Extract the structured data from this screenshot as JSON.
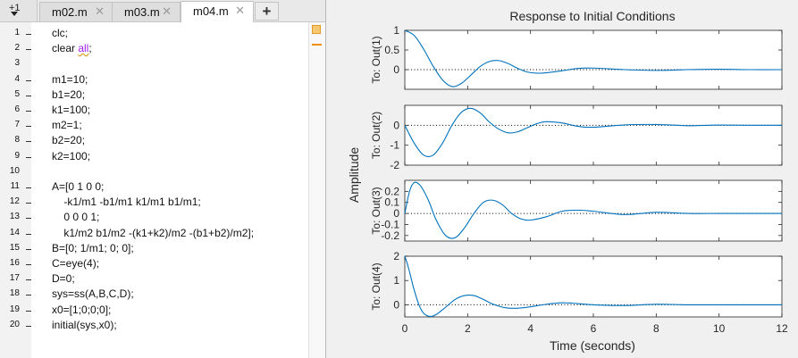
{
  "editor": {
    "tab_count": "+1",
    "tabs": [
      {
        "label": "m02.m",
        "active": false
      },
      {
        "label": "m03.m",
        "active": false
      },
      {
        "label": "m04.m",
        "active": true
      }
    ],
    "add_tab_label": "+",
    "lines": [
      {
        "num": "1",
        "text": "clc;"
      },
      {
        "num": "2",
        "text": "clear ",
        "kw": "all",
        "after": ";"
      },
      {
        "num": "3",
        "text": ""
      },
      {
        "num": "4",
        "text": "m1=10;"
      },
      {
        "num": "5",
        "text": "b1=20;"
      },
      {
        "num": "6",
        "text": "k1=100;"
      },
      {
        "num": "7",
        "text": "m2=1;"
      },
      {
        "num": "8",
        "text": "b2=20;"
      },
      {
        "num": "9",
        "text": "k2=100;"
      },
      {
        "num": "10",
        "text": ""
      },
      {
        "num": "11",
        "text": "A=[0 1 0 0;"
      },
      {
        "num": "12",
        "text": "    -k1/m1 -b1/m1 k1/m1 b1/m1;"
      },
      {
        "num": "13",
        "text": "    0 0 0 1;"
      },
      {
        "num": "14",
        "text": "    k1/m2 b1/m2 -(k1+k2)/m2 -(b1+b2)/m2];"
      },
      {
        "num": "15",
        "text": "B=[0; 1/m1; 0; 0];"
      },
      {
        "num": "16",
        "text": "C=eye(4);"
      },
      {
        "num": "17",
        "text": "D=0;"
      },
      {
        "num": "18",
        "text": "sys=ss(A,B,C,D);"
      },
      {
        "num": "19",
        "text": "x0=[1;0;0;0];"
      },
      {
        "num": "20",
        "text": "initial(sys,x0);"
      }
    ]
  },
  "chart_data": {
    "type": "line",
    "title": "Response to Initial Conditions",
    "xlabel": "Time (seconds)",
    "ylabel": "Amplitude",
    "xlim": [
      0,
      12
    ],
    "xticks": [
      0,
      2,
      4,
      6,
      8,
      10,
      12
    ],
    "line_color": "#0072bd",
    "zero_line": "dotted",
    "subplots": [
      {
        "ylabel": "To: Out(1)",
        "ylim": [
          -0.5,
          1
        ],
        "yticks": [
          0,
          0.5,
          1
        ],
        "ytick_labels": [
          "0",
          "0.5",
          "1"
        ],
        "x": [
          0,
          0.3,
          0.6,
          0.9,
          1.2,
          1.5,
          1.8,
          2.1,
          2.4,
          2.7,
          3.0,
          3.3,
          3.6,
          3.9,
          4.2,
          4.5,
          5.0,
          5.5,
          6.0,
          7.0,
          8.0,
          9.0,
          10.0,
          11.0,
          12.0
        ],
        "y": [
          1,
          0.87,
          0.52,
          0.09,
          -0.26,
          -0.43,
          -0.35,
          -0.14,
          0.08,
          0.21,
          0.23,
          0.15,
          0.03,
          -0.06,
          -0.09,
          -0.08,
          -0.03,
          0.03,
          0.04,
          0.0,
          -0.02,
          0.0,
          0.01,
          0.0,
          0.0
        ]
      },
      {
        "ylabel": "To: Out(2)",
        "ylim": [
          -2,
          1
        ],
        "yticks": [
          -2,
          -1,
          0
        ],
        "ytick_labels": [
          "-2",
          "-1",
          "0"
        ],
        "x": [
          0,
          0.3,
          0.6,
          0.9,
          1.2,
          1.5,
          1.8,
          2.1,
          2.4,
          2.7,
          3.0,
          3.3,
          3.6,
          3.9,
          4.2,
          4.5,
          5.0,
          5.5,
          6.0,
          7.0,
          8.0,
          9.0,
          10.0,
          11.0,
          12.0
        ],
        "y": [
          0,
          -0.9,
          -1.5,
          -1.5,
          -0.9,
          0.0,
          0.65,
          0.85,
          0.62,
          0.15,
          -0.2,
          -0.38,
          -0.32,
          -0.12,
          0.08,
          0.18,
          0.12,
          -0.05,
          -0.1,
          0.02,
          0.04,
          -0.02,
          0.01,
          0.0,
          0.0
        ]
      },
      {
        "ylabel": "To: Out(3)",
        "ylim": [
          -0.25,
          0.3
        ],
        "yticks": [
          -0.2,
          -0.1,
          0,
          0.1,
          0.2
        ],
        "ytick_labels": [
          "-0.2",
          "-0.1",
          "0",
          "0.1",
          "0.2"
        ],
        "x": [
          0,
          0.15,
          0.3,
          0.5,
          0.75,
          1.0,
          1.3,
          1.6,
          1.9,
          2.2,
          2.5,
          2.8,
          3.1,
          3.4,
          3.7,
          4.0,
          4.5,
          5.0,
          5.5,
          6.0,
          7.0,
          8.0,
          9.0,
          10.0,
          11.0,
          12.0
        ],
        "y": [
          0,
          0.2,
          0.28,
          0.25,
          0.12,
          -0.06,
          -0.2,
          -0.22,
          -0.13,
          0.0,
          0.1,
          0.12,
          0.08,
          0.0,
          -0.05,
          -0.06,
          -0.03,
          0.02,
          0.03,
          0.02,
          -0.01,
          0.01,
          0.0,
          0.0,
          0.0,
          0.0
        ]
      },
      {
        "ylabel": "To: Out(4)",
        "ylim": [
          -0.5,
          2
        ],
        "yticks": [
          0,
          1,
          2
        ],
        "ytick_labels": [
          "0",
          "1",
          "2"
        ],
        "x": [
          0,
          0.1,
          0.2,
          0.3,
          0.45,
          0.6,
          0.8,
          1.0,
          1.3,
          1.6,
          1.9,
          2.2,
          2.5,
          2.8,
          3.2,
          3.6,
          4.0,
          4.5,
          5.0,
          5.5,
          6.0,
          7.0,
          8.0,
          9.0,
          10.0,
          11.0,
          12.0
        ],
        "y": [
          2,
          1.6,
          1.1,
          0.6,
          0.0,
          -0.35,
          -0.48,
          -0.4,
          -0.1,
          0.22,
          0.38,
          0.38,
          0.22,
          0.03,
          -0.12,
          -0.14,
          -0.08,
          0.02,
          0.08,
          0.05,
          0.0,
          -0.03,
          0.02,
          0.0,
          0.0,
          0.0,
          0.0
        ]
      }
    ]
  }
}
